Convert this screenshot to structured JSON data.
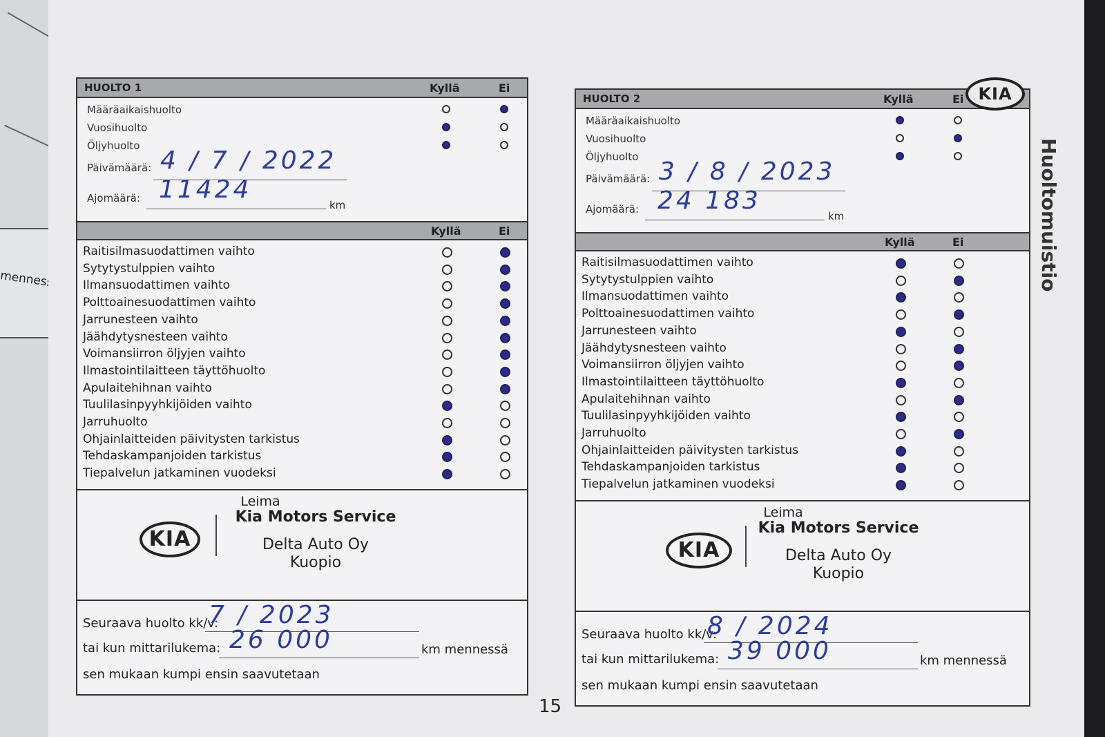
{
  "prev_page": {
    "fragment": "mennessä"
  },
  "brand_logo": "KIA",
  "side_title": "Huoltomuistio",
  "page_number": "15",
  "columns": {
    "yes": "Kyllä",
    "no": "Ei"
  },
  "forms": [
    {
      "title": "HUOLTO 1",
      "top_items": [
        {
          "label": "Määräaikaishuolto",
          "yes": false,
          "no": true
        },
        {
          "label": "Vuosihuolto",
          "yes": true,
          "no": false
        },
        {
          "label": "Öljyhuolto",
          "yes": true,
          "no": false
        }
      ],
      "date_label": "Päivämäärä:",
      "date_value": "4 / 7 / 2022",
      "mileage_label": "Ajomäärä:",
      "mileage_value": "11424",
      "km": "km",
      "items": [
        {
          "label": "Raitisilmasuodattimen vaihto",
          "yes": false,
          "no": true
        },
        {
          "label": "Sytytystulppien vaihto",
          "yes": false,
          "no": true
        },
        {
          "label": "Ilmansuodattimen vaihto",
          "yes": false,
          "no": true
        },
        {
          "label": "Polttoainesuodattimen vaihto",
          "yes": false,
          "no": true
        },
        {
          "label": "Jarrunesteen vaihto",
          "yes": false,
          "no": true
        },
        {
          "label": "Jäähdytysnesteen vaihto",
          "yes": false,
          "no": true
        },
        {
          "label": "Voimansiirron öljyjen vaihto",
          "yes": false,
          "no": true
        },
        {
          "label": "Ilmastointilaitteen täyttöhuolto",
          "yes": false,
          "no": true
        },
        {
          "label": "Apulaitehihnan vaihto",
          "yes": false,
          "no": true
        },
        {
          "label": "Tuulilasinpyyhkijöiden vaihto",
          "yes": true,
          "no": false
        },
        {
          "label": "Jarruhuolto",
          "yes": false,
          "no": false
        },
        {
          "label": "Ohjainlaitteiden päivitysten tarkistus",
          "yes": true,
          "no": false
        },
        {
          "label": "Tehdaskampanjoiden tarkistus",
          "yes": true,
          "no": false
        },
        {
          "label": "Tiepalvelun jatkaminen vuodeksi",
          "yes": true,
          "no": false
        }
      ],
      "stamp": {
        "label": "Leima",
        "service": "Kia Motors Service",
        "dealer": "Delta Auto Oy",
        "city": "Kuopio"
      },
      "next_label": "Seuraava huolto kk/v:",
      "next_value": "7 / 2023",
      "next_km_label": "tai kun mittarilukema:",
      "next_km_value": "26 000",
      "km_suffix": "km mennessä",
      "note": "sen mukaan kumpi ensin saavutetaan"
    },
    {
      "title": "HUOLTO 2",
      "top_items": [
        {
          "label": "Määräaikaishuolto",
          "yes": true,
          "no": false
        },
        {
          "label": "Vuosihuolto",
          "yes": false,
          "no": true
        },
        {
          "label": "Öljyhuolto",
          "yes": true,
          "no": false
        }
      ],
      "date_label": "Päivämäärä:",
      "date_value": "3 / 8 / 2023",
      "mileage_label": "Ajomäärä:",
      "mileage_value": "24 183",
      "km": "km",
      "items": [
        {
          "label": "Raitisilmasuodattimen vaihto",
          "yes": true,
          "no": false
        },
        {
          "label": "Sytytystulppien vaihto",
          "yes": false,
          "no": true
        },
        {
          "label": "Ilmansuodattimen vaihto",
          "yes": true,
          "no": false
        },
        {
          "label": "Polttoainesuodattimen vaihto",
          "yes": false,
          "no": true
        },
        {
          "label": "Jarrunesteen vaihto",
          "yes": true,
          "no": false
        },
        {
          "label": "Jäähdytysnesteen vaihto",
          "yes": false,
          "no": true
        },
        {
          "label": "Voimansiirron öljyjen vaihto",
          "yes": false,
          "no": true
        },
        {
          "label": "Ilmastointilaitteen täyttöhuolto",
          "yes": true,
          "no": false
        },
        {
          "label": "Apulaitehihnan vaihto",
          "yes": false,
          "no": true
        },
        {
          "label": "Tuulilasinpyyhkijöiden vaihto",
          "yes": true,
          "no": false
        },
        {
          "label": "Jarruhuolto",
          "yes": false,
          "no": true
        },
        {
          "label": "Ohjainlaitteiden päivitysten tarkistus",
          "yes": true,
          "no": false
        },
        {
          "label": "Tehdaskampanjoiden tarkistus",
          "yes": true,
          "no": false
        },
        {
          "label": "Tiepalvelun jatkaminen vuodeksi",
          "yes": true,
          "no": false
        }
      ],
      "stamp": {
        "label": "Leima",
        "service": "Kia Motors Service",
        "dealer": "Delta Auto Oy",
        "city": "Kuopio"
      },
      "next_label": "Seuraava huolto kk/v:",
      "next_value": "8 / 2024",
      "next_km_label": "tai kun mittarilukema:",
      "next_km_value": "39 000",
      "km_suffix": "km mennessä",
      "note": "sen mukaan kumpi ensin saavutetaan"
    }
  ]
}
